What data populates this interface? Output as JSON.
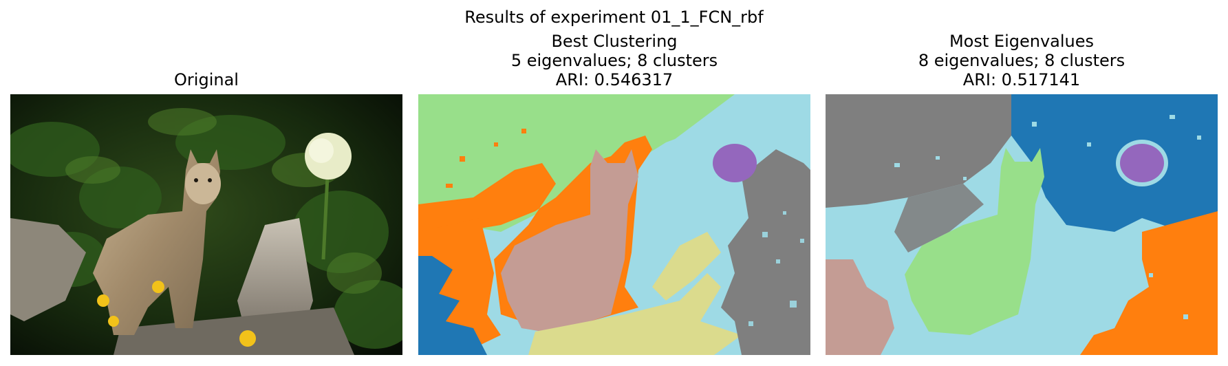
{
  "figure": {
    "title": "Results of experiment 01_1_FCN_rbf"
  },
  "panels": {
    "original": {
      "title_lines": [
        "Original"
      ]
    },
    "best": {
      "title_lines": [
        "Best Clustering",
        "5 eigenvalues; 8 clusters",
        "ARI: 0.546317"
      ]
    },
    "most": {
      "title_lines": [
        "Most Eigenvalues",
        "8 eigenvalues; 8 clusters",
        "ARI: 0.517141"
      ]
    }
  },
  "colors": {
    "tab_blue": "#1f77b4",
    "tab_orange": "#ff7f0e",
    "light_green": "#98df8a",
    "gray": "#7f7f7f",
    "light_cyan": "#9edae5",
    "purple": "#9467bd",
    "khaki": "#dbdb8d",
    "pink_brown": "#c49c94"
  }
}
